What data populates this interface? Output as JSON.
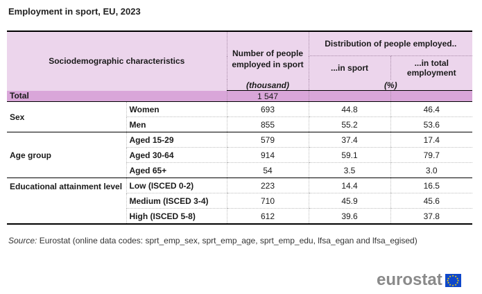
{
  "title": "Employment in sport, EU, 2023",
  "header": {
    "characteristics": "Sociodemographic characteristics",
    "number_employed": "Number of people employed in sport",
    "distribution": "Distribution of people employed..",
    "in_sport": "...in sport",
    "in_total": "...in total employment",
    "unit_thousand": "(thousand)",
    "unit_percent": "(%)"
  },
  "total": {
    "label": "Total",
    "number": "1 547",
    "in_sport": "",
    "in_total": ""
  },
  "groups": [
    {
      "label": "Sex",
      "rows": [
        {
          "label": "Women",
          "number": "693",
          "in_sport": "44.8",
          "in_total": "46.4"
        },
        {
          "label": "Men",
          "number": "855",
          "in_sport": "55.2",
          "in_total": "53.6"
        }
      ]
    },
    {
      "label": "Age group",
      "rows": [
        {
          "label": "Aged 15-29",
          "number": "579",
          "in_sport": "37.4",
          "in_total": "17.4"
        },
        {
          "label": "Aged 30-64",
          "number": "914",
          "in_sport": "59.1",
          "in_total": "79.7"
        },
        {
          "label": "Aged 65+",
          "number": "54",
          "in_sport": "3.5",
          "in_total": "3.0"
        }
      ]
    },
    {
      "label": "Educational attainment level",
      "rows": [
        {
          "label": "Low (ISCED 0-2)",
          "number": "223",
          "in_sport": "14.4",
          "in_total": "16.5"
        },
        {
          "label": "Medium (ISCED 3-4)",
          "number": "710",
          "in_sport": "45.9",
          "in_total": "45.6"
        },
        {
          "label": "High (ISCED 5-8)",
          "number": "612",
          "in_sport": "39.6",
          "in_total": "37.8"
        }
      ]
    }
  ],
  "source": {
    "label": "Source:",
    "text": "Eurostat (online data codes: sprt_emp_sex, sprt_emp_age, sprt_emp_edu, lfsa_egan and lfsa_egised)"
  },
  "logo": {
    "text": "eurostat",
    "flag_icon": "eu-flag-icon"
  }
}
